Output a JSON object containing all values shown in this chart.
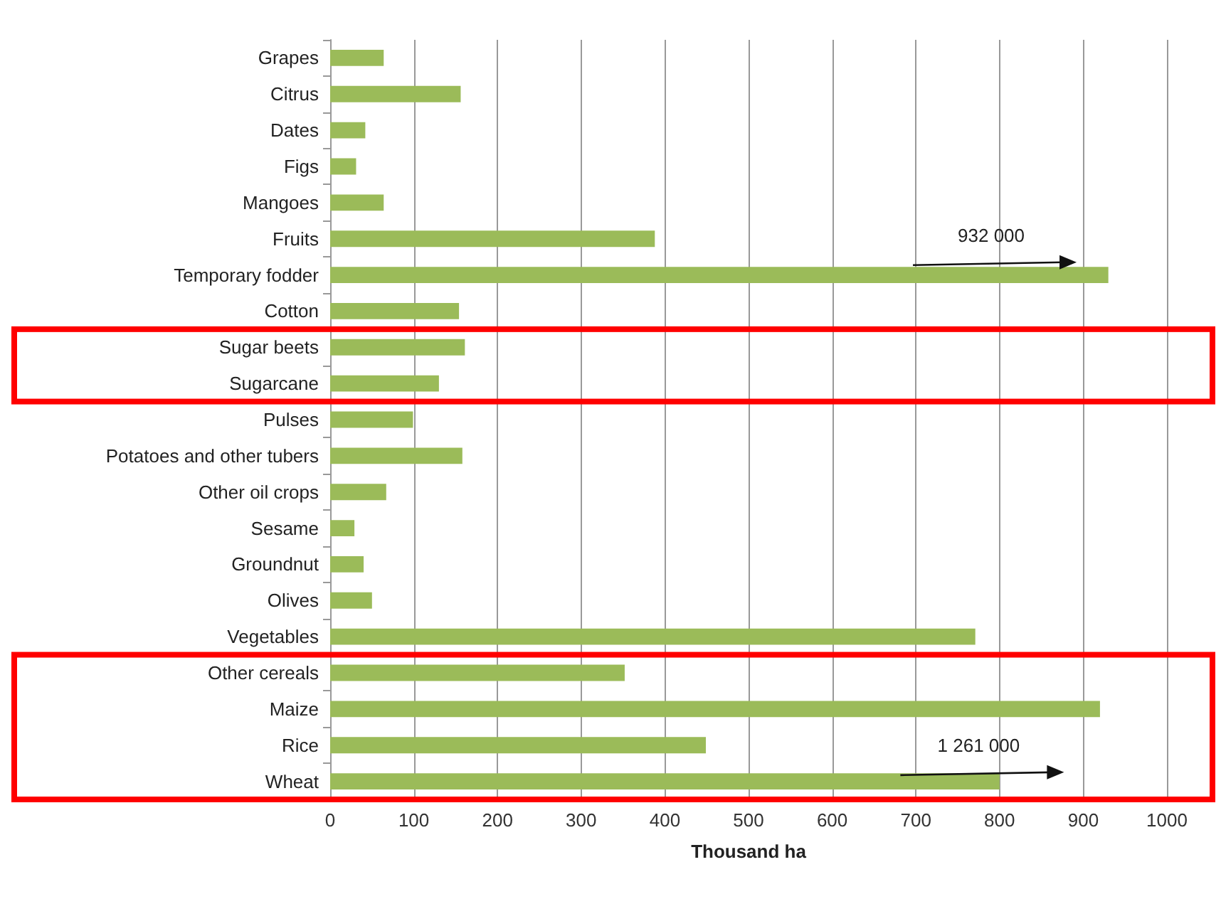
{
  "chart_data": {
    "type": "bar",
    "orientation": "horizontal",
    "xlabel": "Thousand ha",
    "categories": [
      "Grapes",
      "Citrus",
      "Dates",
      "Figs",
      "Mangoes",
      "Fruits",
      "Temporary fodder",
      "Cotton",
      "Sugar beets",
      "Sugarcane",
      "Pulses",
      "Potatoes and other tubers",
      "Other oil crops",
      "Sesame",
      "Groundnut",
      "Olives",
      "Vegetables",
      "Other cereals",
      "Maize",
      "Rice",
      "Wheat"
    ],
    "values": [
      64,
      156,
      42,
      31,
      64,
      388,
      930,
      154,
      161,
      130,
      99,
      158,
      67,
      29,
      40,
      50,
      771,
      352,
      920,
      449,
      800
    ],
    "color": "#9bbb59",
    "xlim": [
      0,
      1000
    ],
    "xticks": [
      0,
      100,
      200,
      300,
      400,
      500,
      600,
      700,
      800,
      900,
      1000
    ],
    "grid": "x",
    "annotations": [
      "932 000",
      "1 261 000"
    ]
  }
}
